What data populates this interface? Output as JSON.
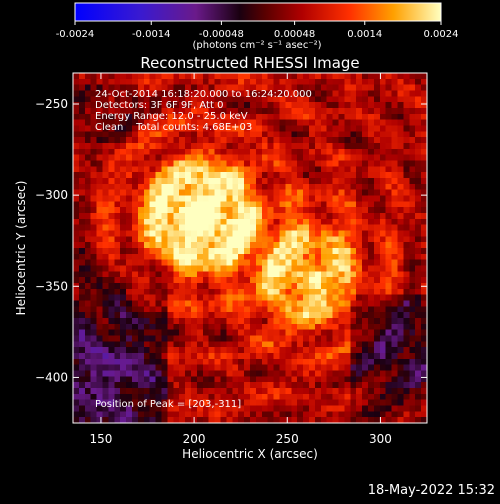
{
  "chart_data": {
    "type": "heatmap",
    "title": "Reconstructed RHESSI Image",
    "xlabel": "Heliocentric X (arcsec)",
    "ylabel": "Heliocentric Y (arcsec)",
    "xlim": [
      135,
      325
    ],
    "ylim": [
      -425,
      -233
    ],
    "xticks": [
      150,
      200,
      250,
      300
    ],
    "yticks": [
      -250,
      -300,
      -350,
      -400
    ],
    "colorbar": {
      "range": [
        -0.0024,
        0.0024
      ],
      "ticks": [
        "-0.0024",
        "-0.0014",
        "-0.00048",
        "0.00048",
        "0.0014",
        "0.0024"
      ],
      "unit_label": "(photons cm⁻² s⁻¹ asec⁻²)"
    },
    "annotations": [
      "24-Oct-2014 16:18:20.000 to 16:24:20.000",
      "Detectors: 3F 6F 9F, Att 0",
      "Energy Range: 12.0 - 25.0 keV",
      "Clean    Total counts: 4.68E+03"
    ],
    "peak_label": "Position of Peak = [203,-311]",
    "peak": [
      203,
      -311
    ],
    "sources": [
      {
        "x": 203,
        "y": -311,
        "value": 0.0024
      },
      {
        "x": 262,
        "y": -345,
        "value": 0.0016
      }
    ],
    "timestamp": "18-May-2022 15:32"
  }
}
